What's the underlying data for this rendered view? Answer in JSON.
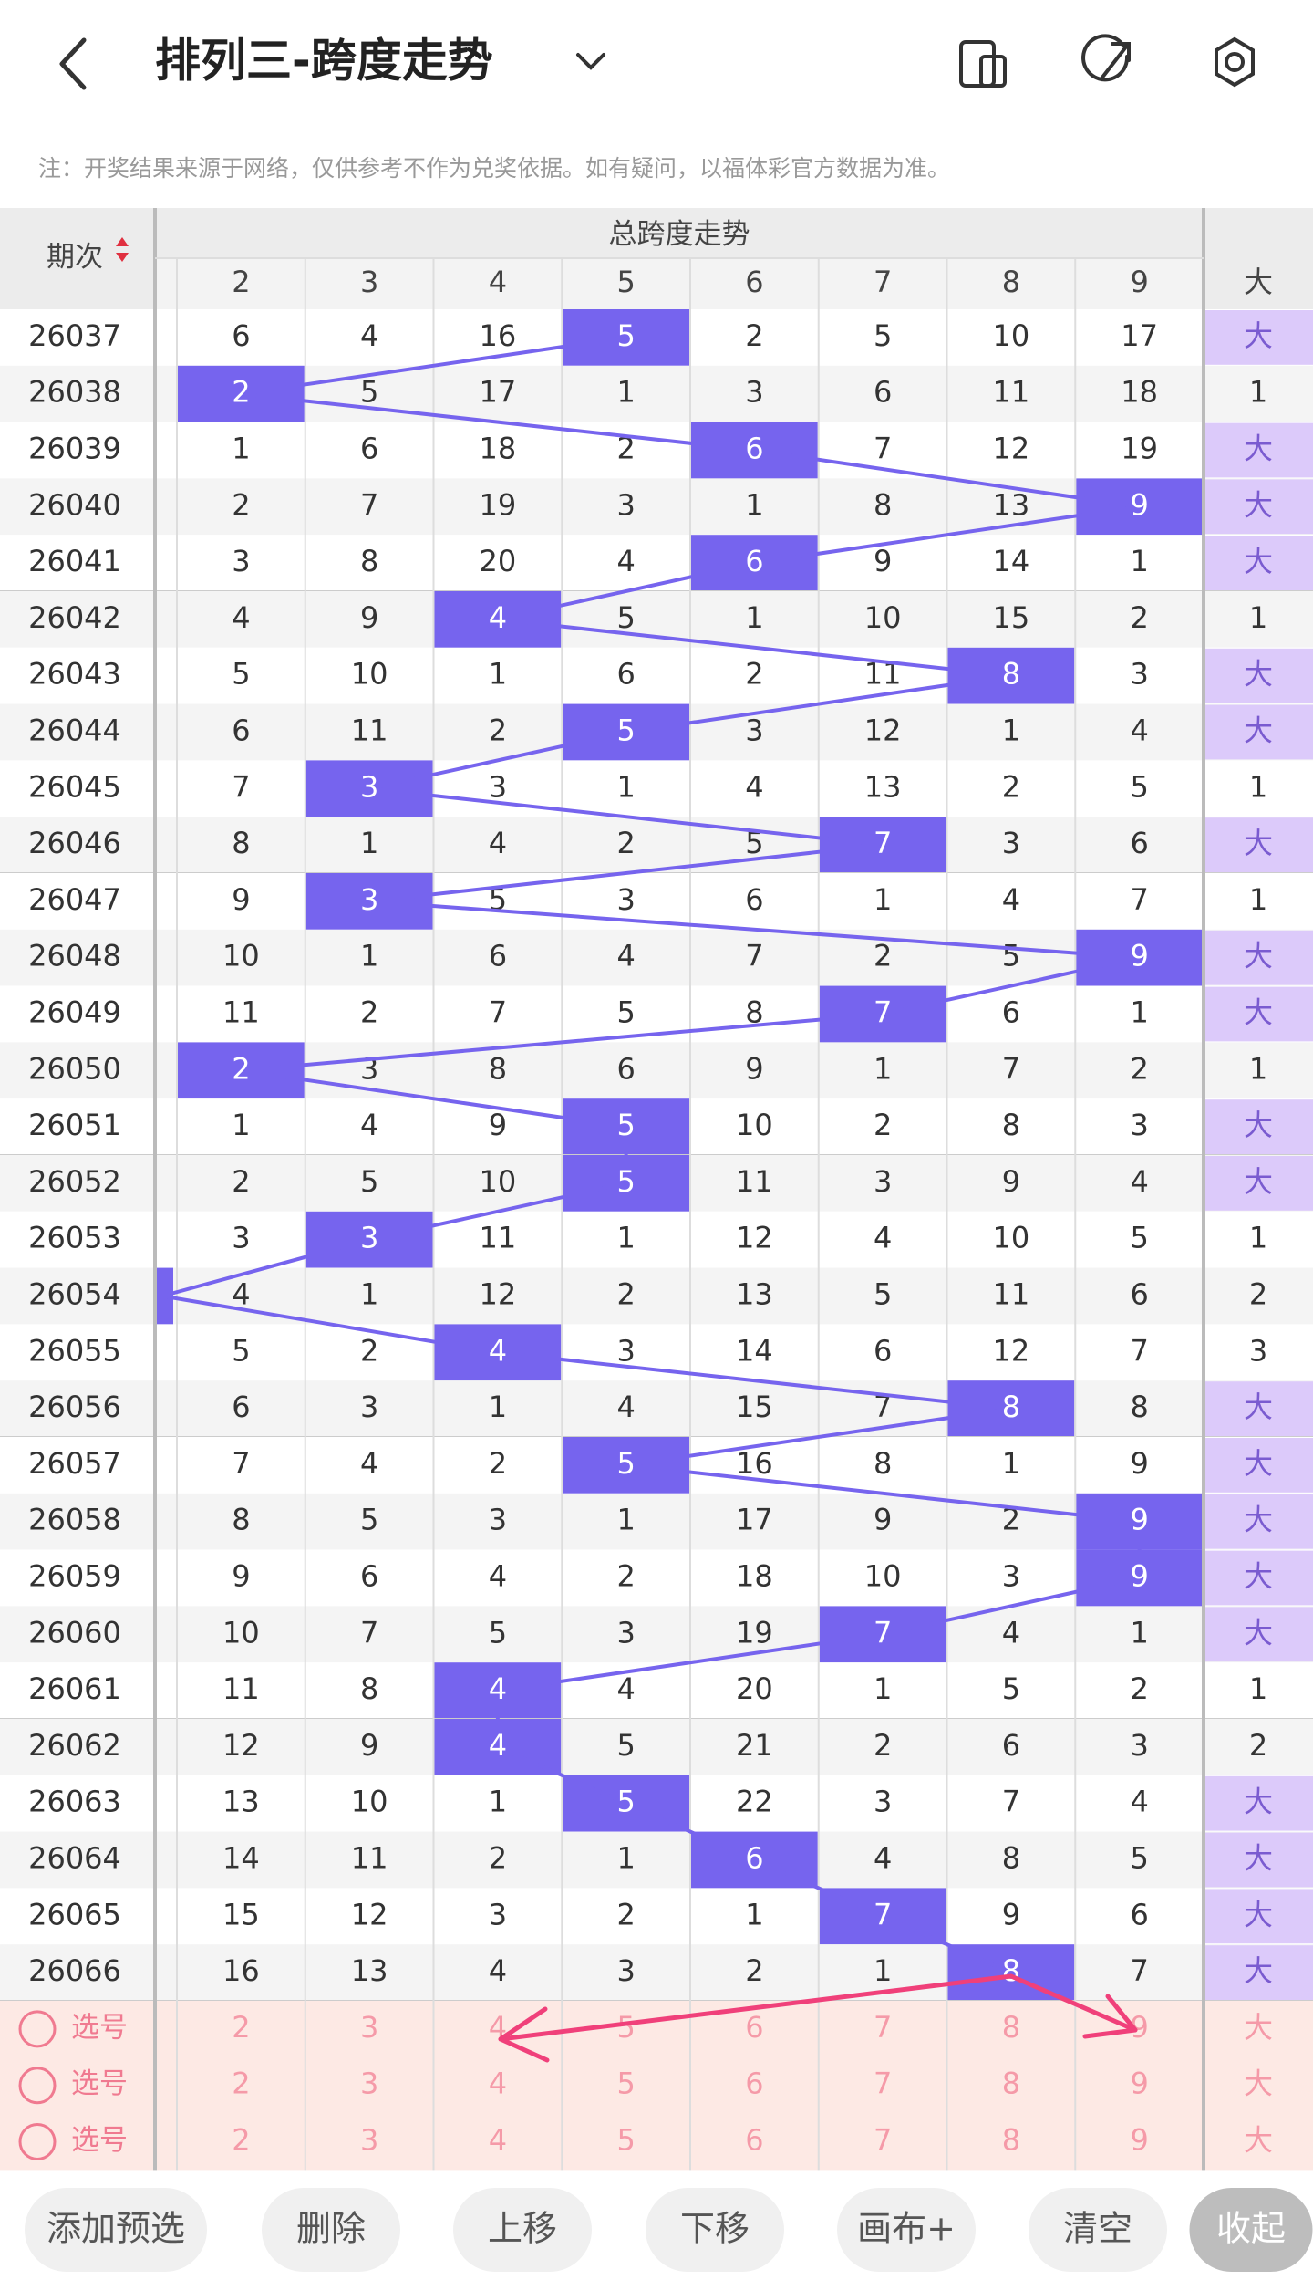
{
  "header": {
    "title": "排列三-跨度走势"
  },
  "note": "注：开奖结果来源于网络，仅供参考不作为兑奖依据。如有疑问，以福体彩官方数据为准。",
  "table": {
    "period_header": "期次",
    "group_header": "总跨度走势",
    "columns": [
      "2",
      "3",
      "4",
      "5",
      "6",
      "7",
      "8",
      "9"
    ],
    "big_header": "大",
    "rows": [
      {
        "period": "26037",
        "values": [
          6,
          4,
          16,
          5,
          2,
          5,
          10,
          17
        ],
        "hit": 3,
        "big": "大"
      },
      {
        "period": "26038",
        "values": [
          2,
          5,
          17,
          1,
          3,
          6,
          11,
          18
        ],
        "hit": 0,
        "big": "1"
      },
      {
        "period": "26039",
        "values": [
          1,
          6,
          18,
          2,
          6,
          7,
          12,
          19
        ],
        "hit": 4,
        "big": "大"
      },
      {
        "period": "26040",
        "values": [
          2,
          7,
          19,
          3,
          1,
          8,
          13,
          9
        ],
        "hit": 7,
        "big": "大"
      },
      {
        "period": "26041",
        "values": [
          3,
          8,
          20,
          4,
          6,
          9,
          14,
          1
        ],
        "hit": 4,
        "big": "大"
      },
      {
        "period": "26042",
        "values": [
          4,
          9,
          4,
          5,
          1,
          10,
          15,
          2
        ],
        "hit": 2,
        "big": "1"
      },
      {
        "period": "26043",
        "values": [
          5,
          10,
          1,
          6,
          2,
          11,
          8,
          3
        ],
        "hit": 6,
        "big": "大"
      },
      {
        "period": "26044",
        "values": [
          6,
          11,
          2,
          5,
          3,
          12,
          1,
          4
        ],
        "hit": 3,
        "big": "大"
      },
      {
        "period": "26045",
        "values": [
          7,
          3,
          3,
          1,
          4,
          13,
          2,
          5
        ],
        "hit": 1,
        "big": "1"
      },
      {
        "period": "26046",
        "values": [
          8,
          1,
          4,
          2,
          5,
          7,
          3,
          6
        ],
        "hit": 5,
        "big": "大"
      },
      {
        "period": "26047",
        "values": [
          9,
          3,
          5,
          3,
          6,
          1,
          4,
          7
        ],
        "hit": 1,
        "big": "1"
      },
      {
        "period": "26048",
        "values": [
          10,
          1,
          6,
          4,
          7,
          2,
          5,
          9
        ],
        "hit": 7,
        "big": "大"
      },
      {
        "period": "26049",
        "values": [
          11,
          2,
          7,
          5,
          8,
          7,
          6,
          1
        ],
        "hit": 5,
        "big": "大"
      },
      {
        "period": "26050",
        "values": [
          2,
          3,
          8,
          6,
          9,
          1,
          7,
          2
        ],
        "hit": 0,
        "big": "1"
      },
      {
        "period": "26051",
        "values": [
          1,
          4,
          9,
          5,
          10,
          2,
          8,
          3
        ],
        "hit": 3,
        "big": "大"
      },
      {
        "period": "26052",
        "values": [
          2,
          5,
          10,
          5,
          11,
          3,
          9,
          4
        ],
        "hit": 3,
        "big": "大"
      },
      {
        "period": "26053",
        "values": [
          3,
          3,
          11,
          1,
          12,
          4,
          10,
          5
        ],
        "hit": 1,
        "big": "1"
      },
      {
        "period": "26054",
        "values": [
          4,
          1,
          12,
          2,
          13,
          5,
          11,
          6
        ],
        "hit": -1,
        "big": "2"
      },
      {
        "period": "26055",
        "values": [
          5,
          2,
          4,
          3,
          14,
          6,
          12,
          7
        ],
        "hit": 2,
        "big": "3"
      },
      {
        "period": "26056",
        "values": [
          6,
          3,
          1,
          4,
          15,
          7,
          8,
          8
        ],
        "hit": 6,
        "big": "大"
      },
      {
        "period": "26057",
        "values": [
          7,
          4,
          2,
          5,
          16,
          8,
          1,
          9
        ],
        "hit": 3,
        "big": "大"
      },
      {
        "period": "26058",
        "values": [
          8,
          5,
          3,
          1,
          17,
          9,
          2,
          9
        ],
        "hit": 7,
        "big": "大"
      },
      {
        "period": "26059",
        "values": [
          9,
          6,
          4,
          2,
          18,
          10,
          3,
          9
        ],
        "hit": 7,
        "big": "大"
      },
      {
        "period": "26060",
        "values": [
          10,
          7,
          5,
          3,
          19,
          7,
          4,
          1
        ],
        "hit": 5,
        "big": "大"
      },
      {
        "period": "26061",
        "values": [
          11,
          8,
          4,
          4,
          20,
          1,
          5,
          2
        ],
        "hit": 2,
        "big": "1"
      },
      {
        "period": "26062",
        "values": [
          12,
          9,
          4,
          5,
          21,
          2,
          6,
          3
        ],
        "hit": 2,
        "big": "2"
      },
      {
        "period": "26063",
        "values": [
          13,
          10,
          1,
          5,
          22,
          3,
          7,
          4
        ],
        "hit": 3,
        "big": "大"
      },
      {
        "period": "26064",
        "values": [
          14,
          11,
          2,
          1,
          6,
          4,
          8,
          5
        ],
        "hit": 4,
        "big": "大"
      },
      {
        "period": "26065",
        "values": [
          15,
          12,
          3,
          2,
          1,
          7,
          9,
          6
        ],
        "hit": 5,
        "big": "大"
      },
      {
        "period": "26066",
        "values": [
          16,
          13,
          4,
          3,
          2,
          1,
          8,
          7
        ],
        "hit": 6,
        "big": "大"
      }
    ],
    "picks": [
      {
        "label": "选号",
        "values": [
          2,
          3,
          4,
          5,
          6,
          7,
          8,
          9
        ],
        "big": "大"
      },
      {
        "label": "选号",
        "values": [
          2,
          3,
          4,
          5,
          6,
          7,
          8,
          9
        ],
        "big": "大"
      },
      {
        "label": "选号",
        "values": [
          2,
          3,
          4,
          5,
          6,
          7,
          8,
          9
        ],
        "big": "大"
      }
    ]
  },
  "buttons": [
    "添加预选",
    "删除",
    "上移",
    "下移",
    "画布+",
    "清空",
    "收起"
  ]
}
